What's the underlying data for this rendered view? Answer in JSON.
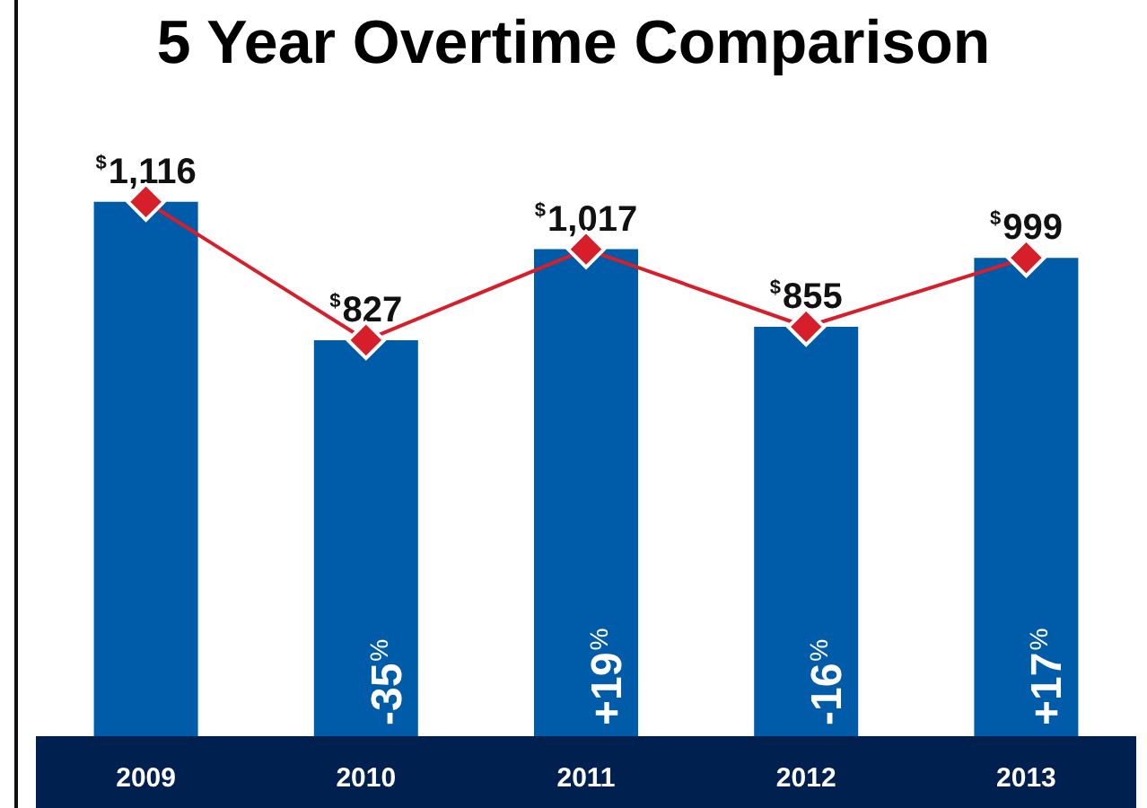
{
  "chart_data": {
    "type": "bar",
    "title": "5 Year Overtime Comparison",
    "categories": [
      "2009",
      "2010",
      "2011",
      "2012",
      "2013"
    ],
    "series": [
      {
        "color": "#005ba8",
        "values": [
          1116,
          827,
          1017,
          855,
          999
        ],
        "value_labels": [
          "$^{$}$1,116",
          "$^{$}$827",
          "$^{$}$1,017",
          "$^{$}$855",
          "$^{$}$999"
        ]
      },
      {
        "type": "line",
        "color": "#d71e2b",
        "values": [
          1116,
          827,
          1017,
          855,
          999
        ]
      }
    ],
    "marker": "diamond",
    "annotations": [
      "-35$^{%}$",
      "+19$^{%}$",
      "-16$^{%}$",
      "+17$^{%}$"
    ]
  }
}
